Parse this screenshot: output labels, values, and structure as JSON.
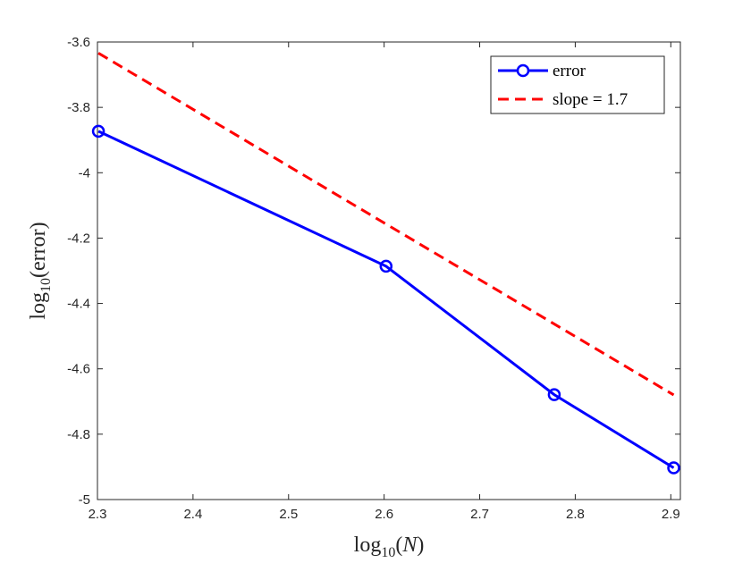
{
  "chart_data": {
    "type": "line",
    "xlabel": {
      "prefix": "log",
      "sub": "10",
      "arg_open": "(",
      "arg": "N",
      "arg_close": ")"
    },
    "ylabel": {
      "prefix": "log",
      "sub": "10",
      "arg_open": "(",
      "arg": "error",
      "arg_close": ")"
    },
    "xlim": [
      2.3,
      2.91
    ],
    "ylim": [
      -5,
      -3.6
    ],
    "xticks": [
      2.3,
      2.4,
      2.5,
      2.6,
      2.7,
      2.8,
      2.9
    ],
    "xtick_labels": [
      "2.3",
      "2.4",
      "2.5",
      "2.6",
      "2.7",
      "2.8",
      "2.9"
    ],
    "yticks": [
      -3.6,
      -3.8,
      -4,
      -4.2,
      -4.4,
      -4.6,
      -4.8,
      -5
    ],
    "ytick_labels": [
      "-3.6",
      "-3.8",
      "-4",
      "-4.2",
      "-4.4",
      "-4.6",
      "-4.8",
      "-5"
    ],
    "grid": false,
    "legend_position": "top-right",
    "series": [
      {
        "name": "error",
        "color": "#0000ff",
        "style": "solid",
        "marker": "circle",
        "x": [
          2.301,
          2.602,
          2.778,
          2.903
        ],
        "y": [
          -3.873,
          -4.286,
          -4.679,
          -4.903
        ]
      },
      {
        "name": "slope = 1.7",
        "color": "#ff0000",
        "style": "dashed",
        "marker": "none",
        "x": [
          2.301,
          2.903
        ],
        "y": [
          -3.634,
          -4.68
        ]
      }
    ]
  }
}
